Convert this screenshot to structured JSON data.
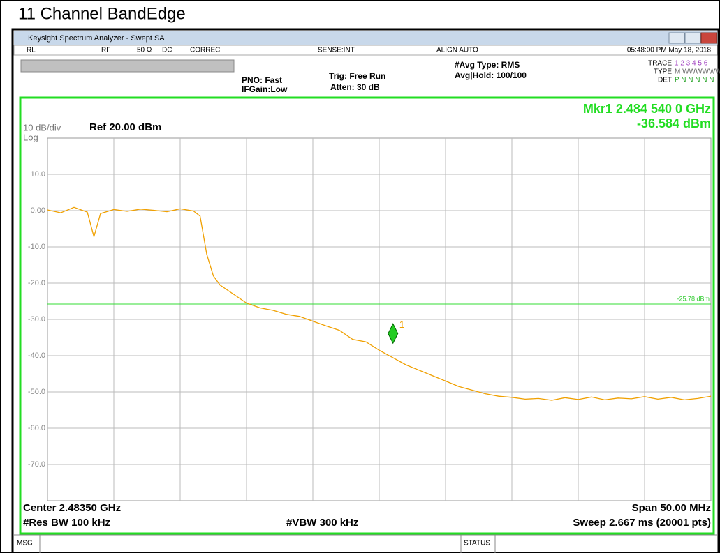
{
  "header": {
    "title": "11 Channel BandEdge"
  },
  "window": {
    "title": "Keysight Spectrum Analyzer - Swept SA",
    "status": [
      "RL",
      "RF",
      "50 Ω",
      "DC",
      "CORREC",
      "SENSE:INT",
      "ALIGN AUTO",
      "05:48:00 PM May 18, 2018"
    ],
    "pno": "PNO: Fast",
    "ifgain": "IFGain:Low",
    "trig": "Trig: Free Run",
    "atten": "Atten: 30 dB",
    "avg_type": "#Avg Type: RMS",
    "avg_hold": "Avg|Hold: 100/100",
    "trace_rows": [
      [
        "TRACE",
        "1 2 3 4 5 6"
      ],
      [
        "TYPE",
        "M WWWWWW"
      ],
      [
        "DET",
        "P N N N N N"
      ]
    ],
    "scale": "10 dB/div",
    "log": "Log",
    "ref": "Ref 20.00 dBm",
    "mkr_freq": "Mkr1 2.484 540 0 GHz",
    "mkr_amp": "-36.584 dBm",
    "center": "Center 2.48350 GHz",
    "span": "Span 50.00 MHz",
    "rbw": "#Res BW 100 kHz",
    "vbw": "#VBW 300 kHz",
    "sweep": "Sweep  2.667 ms (20001 pts)",
    "msg": "MSG",
    "status_label": "STATUS"
  },
  "chart_data": {
    "type": "line",
    "color": "#f0a000",
    "xlim": [
      2.4585,
      2.5085
    ],
    "ylim": [
      -80,
      20
    ],
    "xticks": [
      2.4635,
      2.4685,
      2.4735,
      2.4785,
      2.4835,
      2.4885,
      2.4935,
      2.4985,
      2.5035
    ],
    "yticks": [
      {
        "value": 10,
        "label": "10.0"
      },
      {
        "value": 0,
        "label": "0.00"
      },
      {
        "value": -10,
        "label": "-10.0"
      },
      {
        "value": -20,
        "label": "-20.0"
      },
      {
        "value": -30,
        "label": "-30.0"
      },
      {
        "value": -40,
        "label": "-40.0"
      },
      {
        "value": -50,
        "label": "-50.0"
      },
      {
        "value": -60,
        "label": "-60.0"
      },
      {
        "value": -70,
        "label": "-70.0"
      }
    ],
    "x": [
      2.4585,
      2.4595,
      2.4605,
      2.4615,
      2.462,
      2.4625,
      2.4635,
      2.4645,
      2.4655,
      2.4665,
      2.4675,
      2.4685,
      2.4695,
      2.47,
      2.4705,
      2.471,
      2.4715,
      2.4725,
      2.4735,
      2.4745,
      2.4755,
      2.4765,
      2.4775,
      2.4785,
      2.4795,
      2.4805,
      2.4815,
      2.4825,
      2.4835,
      2.4845,
      2.4855,
      2.4865,
      2.4875,
      2.4885,
      2.4895,
      2.4905,
      2.4915,
      2.4925,
      2.4935,
      2.4945,
      2.4955,
      2.4965,
      2.4975,
      2.4985,
      2.4995,
      2.5005,
      2.5015,
      2.5025,
      2.5035,
      2.5045,
      2.5055,
      2.5065,
      2.5075,
      2.5085
    ],
    "values": [
      0.2,
      -0.6,
      0.9,
      -0.4,
      -7.2,
      -0.8,
      0.3,
      -0.2,
      0.4,
      0.1,
      -0.3,
      0.5,
      -0.1,
      -1.5,
      -12,
      -18,
      -20.5,
      -23,
      -25.5,
      -26.8,
      -27.5,
      -28.6,
      -29.2,
      -30.5,
      -31.8,
      -33,
      -35.5,
      -36.2,
      -38.5,
      -40.5,
      -42.5,
      -44,
      -45.5,
      -47,
      -48.5,
      -49.5,
      -50.5,
      -51.2,
      -51.5,
      -52,
      -51.8,
      -52.3,
      -51.6,
      -52.1,
      -51.4,
      -52.2,
      -51.7,
      -51.9,
      -51.3,
      -52,
      -51.5,
      -52.2,
      -51.8,
      -51.2
    ],
    "marker": {
      "label": "1",
      "x": 2.48454,
      "y": -36.584
    },
    "display_line": {
      "value": -25.78,
      "label": "-25.78 dBm"
    }
  }
}
